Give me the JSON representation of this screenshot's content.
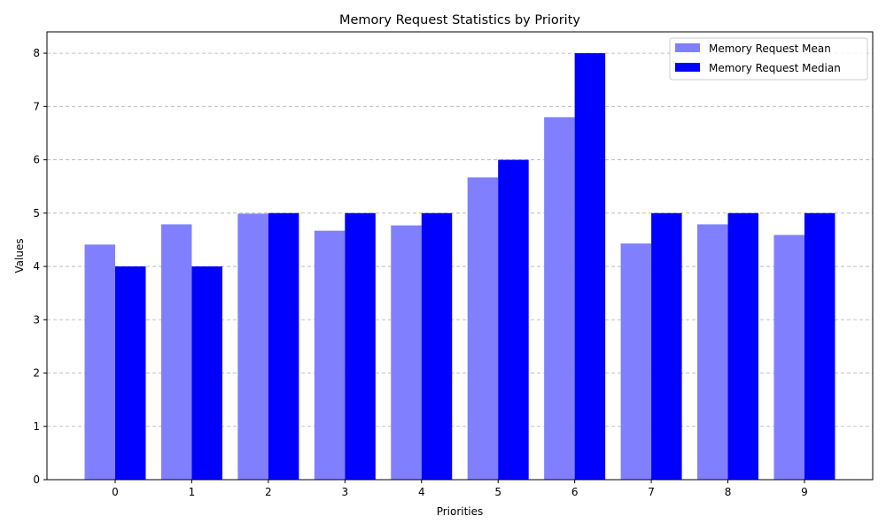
{
  "chart_data": {
    "type": "bar",
    "title": "Memory Request Statistics by Priority",
    "xlabel": "Priorities",
    "ylabel": "Values",
    "categories": [
      "0",
      "1",
      "2",
      "3",
      "4",
      "5",
      "6",
      "7",
      "8",
      "9"
    ],
    "series": [
      {
        "name": "Memory Request Mean",
        "color": "#8080ff",
        "values": [
          4.41,
          4.79,
          4.99,
          4.67,
          4.77,
          5.67,
          6.8,
          4.43,
          4.79,
          4.59
        ]
      },
      {
        "name": "Memory Request Median",
        "color": "#0000ff",
        "values": [
          4,
          4,
          5,
          5,
          5,
          6,
          8,
          5,
          5,
          5
        ]
      }
    ],
    "ylim": [
      0,
      8.4
    ],
    "yticks": [
      "0",
      "1",
      "2",
      "3",
      "4",
      "5",
      "6",
      "7",
      "8"
    ],
    "grid": "y-dashed",
    "legend_position": "top-right"
  }
}
